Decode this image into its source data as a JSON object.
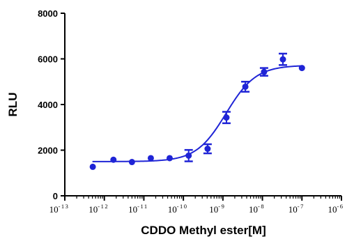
{
  "chart_data": {
    "type": "scatter",
    "title": "",
    "xlabel": "CDDO Methyl ester[M]",
    "ylabel": "RLU",
    "x_scale": "log",
    "xlim": [
      1e-13,
      1e-06
    ],
    "ylim": [
      0,
      8000
    ],
    "x_ticks": [
      {
        "value": 1e-13,
        "base": "10",
        "exp": "-13"
      },
      {
        "value": 1e-12,
        "base": "10",
        "exp": "-12"
      },
      {
        "value": 1e-11,
        "base": "10",
        "exp": "-11"
      },
      {
        "value": 1e-10,
        "base": "10",
        "exp": "-10"
      },
      {
        "value": 1e-09,
        "base": "10",
        "exp": "-9"
      },
      {
        "value": 1e-08,
        "base": "10",
        "exp": "-8"
      },
      {
        "value": 1e-07,
        "base": "10",
        "exp": "-7"
      },
      {
        "value": 1e-06,
        "base": "10",
        "exp": "-6"
      }
    ],
    "y_ticks": [
      {
        "value": 0,
        "label": "0"
      },
      {
        "value": 2000,
        "label": "2000"
      },
      {
        "value": 4000,
        "label": "4000"
      },
      {
        "value": 6000,
        "label": "6000"
      },
      {
        "value": 8000,
        "label": "8000"
      }
    ],
    "grid": false,
    "color": "#1f24d6",
    "points": [
      {
        "x": 5.1e-13,
        "y": 1270,
        "err": 0
      },
      {
        "x": 1.7e-12,
        "y": 1580,
        "err": 0
      },
      {
        "x": 5e-12,
        "y": 1480,
        "err": 0
      },
      {
        "x": 1.5e-11,
        "y": 1650,
        "err": 0
      },
      {
        "x": 4.5e-11,
        "y": 1650,
        "err": 0
      },
      {
        "x": 1.36e-10,
        "y": 1760,
        "err": 250
      },
      {
        "x": 4.1e-10,
        "y": 2060,
        "err": 200
      },
      {
        "x": 1.23e-09,
        "y": 3430,
        "err": 250
      },
      {
        "x": 3.7e-09,
        "y": 4780,
        "err": 220
      },
      {
        "x": 1.1e-08,
        "y": 5430,
        "err": 170
      },
      {
        "x": 3.3e-08,
        "y": 5980,
        "err": 250
      },
      {
        "x": 1e-07,
        "y": 5600,
        "err": 0
      }
    ],
    "fit": {
      "model": "sigmoidal dose-response",
      "bottom": 1500,
      "top": 5720,
      "log_ec50": -8.92,
      "hill_slope": 1.15,
      "x_range": [
        5e-13,
        1e-07
      ]
    }
  }
}
